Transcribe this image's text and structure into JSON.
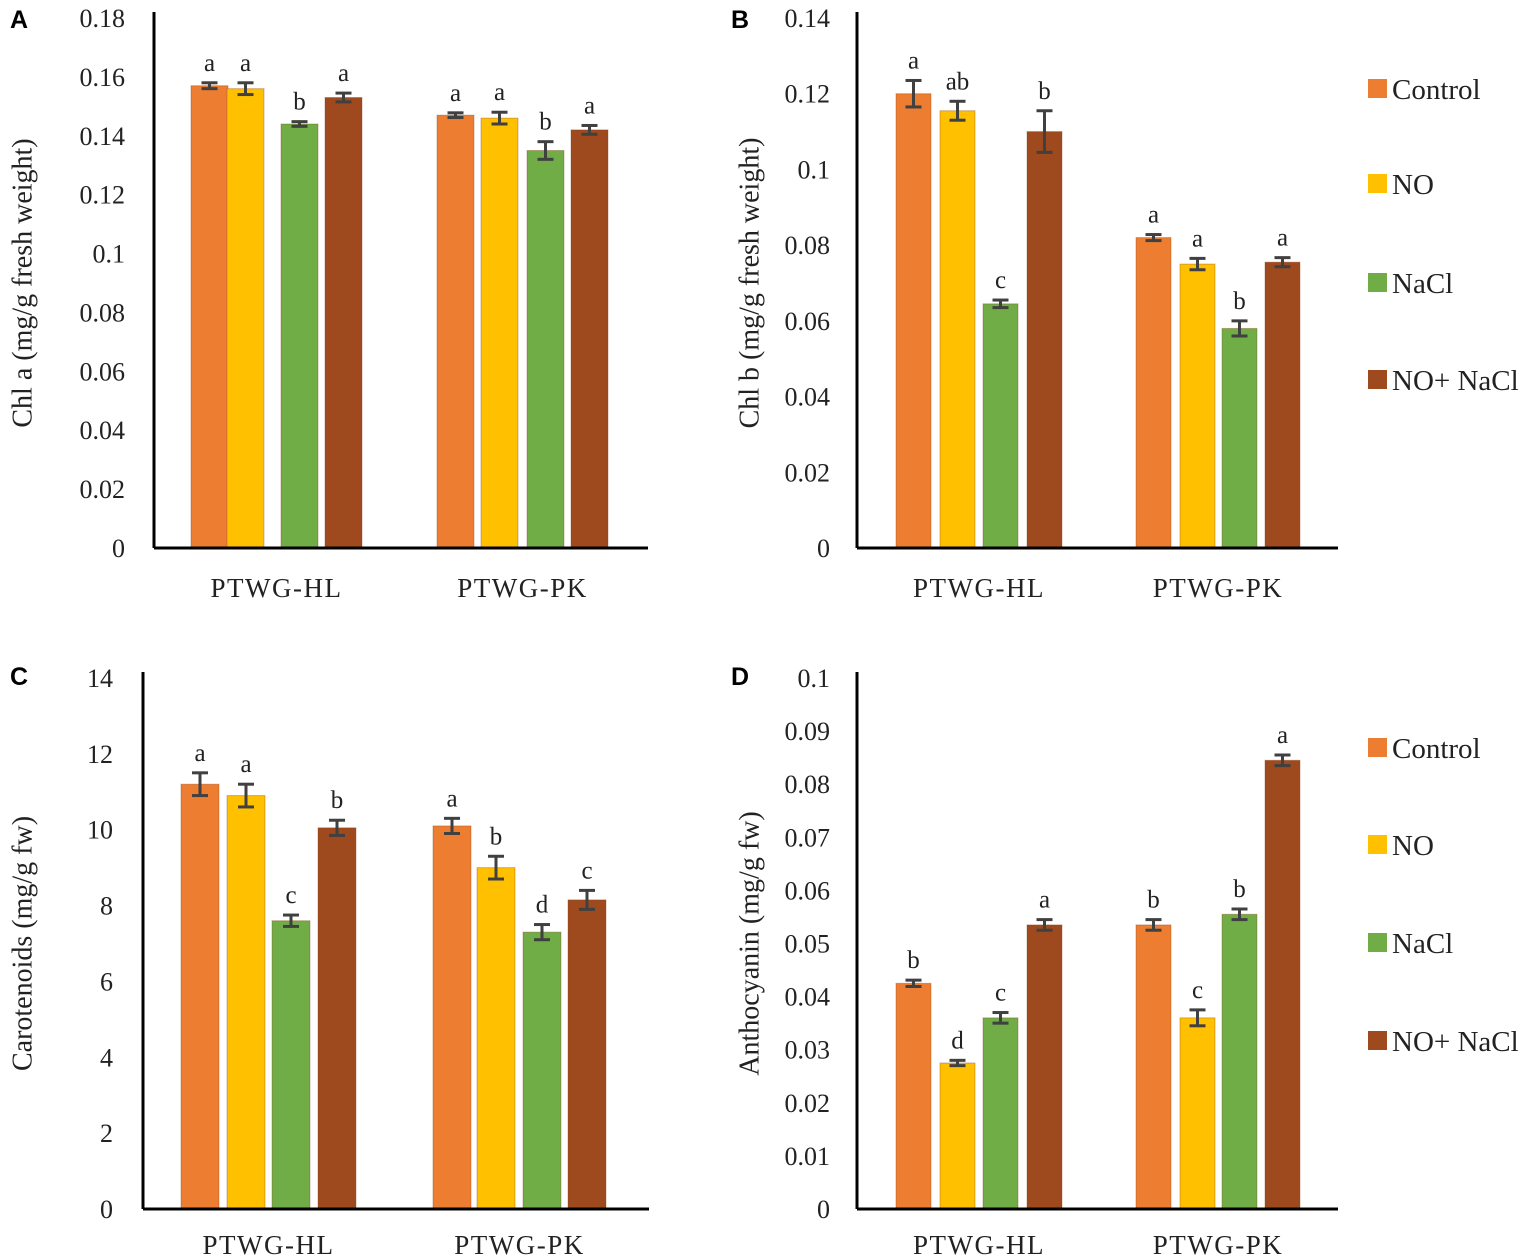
{
  "colors": {
    "Control": "#ED7D31",
    "NO": "#FFC000",
    "NaCl": "#70AD47",
    "NO+ NaCl": "#9E4A1E"
  },
  "legend": [
    "Control",
    "NO",
    "NaCl",
    "NO+ NaCl"
  ],
  "chart_data": [
    {
      "panel": "A",
      "type": "bar",
      "ylabel": "Chl a (mg/g fresh weight)",
      "ylim": [
        0,
        0.18
      ],
      "yticks": [
        "0",
        "0.02",
        "0.04",
        "0.06",
        "0.08",
        "0.1",
        "0.12",
        "0.14",
        "0.16",
        "0.18"
      ],
      "categories": [
        "PTWG-HL",
        "PTWG-PK"
      ],
      "series": [
        {
          "name": "Control",
          "values": [
            0.157,
            0.147
          ],
          "errors": [
            0.001,
            0.0008
          ],
          "letters": [
            "a",
            "a"
          ]
        },
        {
          "name": "NO",
          "values": [
            0.156,
            0.146
          ],
          "errors": [
            0.002,
            0.002
          ],
          "letters": [
            "a",
            "a"
          ]
        },
        {
          "name": "NaCl",
          "values": [
            0.144,
            0.135
          ],
          "errors": [
            0.0008,
            0.003
          ],
          "letters": [
            "b",
            "b"
          ]
        },
        {
          "name": "NO+ NaCl",
          "values": [
            0.153,
            0.142
          ],
          "errors": [
            0.0015,
            0.0015
          ],
          "letters": [
            "a",
            "a"
          ]
        }
      ]
    },
    {
      "panel": "B",
      "type": "bar",
      "ylabel": "Chl b (mg/g fresh weight)",
      "ylim": [
        0,
        0.14
      ],
      "yticks": [
        "0",
        "0.02",
        "0.04",
        "0.06",
        "0.08",
        "0.1",
        "0.12",
        "0.14"
      ],
      "categories": [
        "PTWG-HL",
        "PTWG-PK"
      ],
      "series": [
        {
          "name": "Control",
          "values": [
            0.12,
            0.082
          ],
          "errors": [
            0.0035,
            0.0008
          ],
          "letters": [
            "a",
            "a"
          ]
        },
        {
          "name": "NO",
          "values": [
            0.1155,
            0.075
          ],
          "errors": [
            0.0025,
            0.0015
          ],
          "letters": [
            "ab",
            "a"
          ]
        },
        {
          "name": "NaCl",
          "values": [
            0.0645,
            0.058
          ],
          "errors": [
            0.001,
            0.002
          ],
          "letters": [
            "c",
            "b"
          ]
        },
        {
          "name": "NO+ NaCl",
          "values": [
            0.11,
            0.0755
          ],
          "errors": [
            0.0055,
            0.0012
          ],
          "letters": [
            "b",
            "a"
          ]
        }
      ]
    },
    {
      "panel": "C",
      "type": "bar",
      "ylabel": "Carotenoids (mg/g fw)",
      "ylim": [
        0,
        14
      ],
      "yticks": [
        "0",
        "2",
        "4",
        "6",
        "8",
        "10",
        "12",
        "14"
      ],
      "categories": [
        "PTWG-HL",
        "PTWG-PK"
      ],
      "series": [
        {
          "name": "Control",
          "values": [
            11.2,
            10.1
          ],
          "errors": [
            0.3,
            0.2
          ],
          "letters": [
            "a",
            "a"
          ]
        },
        {
          "name": "NO",
          "values": [
            10.9,
            9.0
          ],
          "errors": [
            0.3,
            0.3
          ],
          "letters": [
            "a",
            "b"
          ]
        },
        {
          "name": "NaCl",
          "values": [
            7.6,
            7.3
          ],
          "errors": [
            0.15,
            0.2
          ],
          "letters": [
            "c",
            "d"
          ]
        },
        {
          "name": "NO+ NaCl",
          "values": [
            10.05,
            8.15
          ],
          "errors": [
            0.2,
            0.25
          ],
          "letters": [
            "b",
            "c"
          ]
        }
      ]
    },
    {
      "panel": "D",
      "type": "bar",
      "ylabel": "Anthocyanin (mg/g fw)",
      "ylim": [
        0,
        0.1
      ],
      "yticks": [
        "0",
        "0.01",
        "0.02",
        "0.03",
        "0.04",
        "0.05",
        "0.06",
        "0.07",
        "0.08",
        "0.09",
        "0.1"
      ],
      "categories": [
        "PTWG-HL",
        "PTWG-PK"
      ],
      "series": [
        {
          "name": "Control",
          "values": [
            0.0425,
            0.0535
          ],
          "errors": [
            0.0006,
            0.001
          ],
          "letters": [
            "b",
            "b"
          ]
        },
        {
          "name": "NO",
          "values": [
            0.0275,
            0.036
          ],
          "errors": [
            0.0005,
            0.0015
          ],
          "letters": [
            "d",
            "c"
          ]
        },
        {
          "name": "NaCl",
          "values": [
            0.036,
            0.0555
          ],
          "errors": [
            0.001,
            0.001
          ],
          "letters": [
            "c",
            "b"
          ]
        },
        {
          "name": "NO+ NaCl",
          "values": [
            0.0535,
            0.0845
          ],
          "errors": [
            0.001,
            0.001
          ],
          "letters": [
            "a",
            "a"
          ]
        }
      ]
    }
  ]
}
